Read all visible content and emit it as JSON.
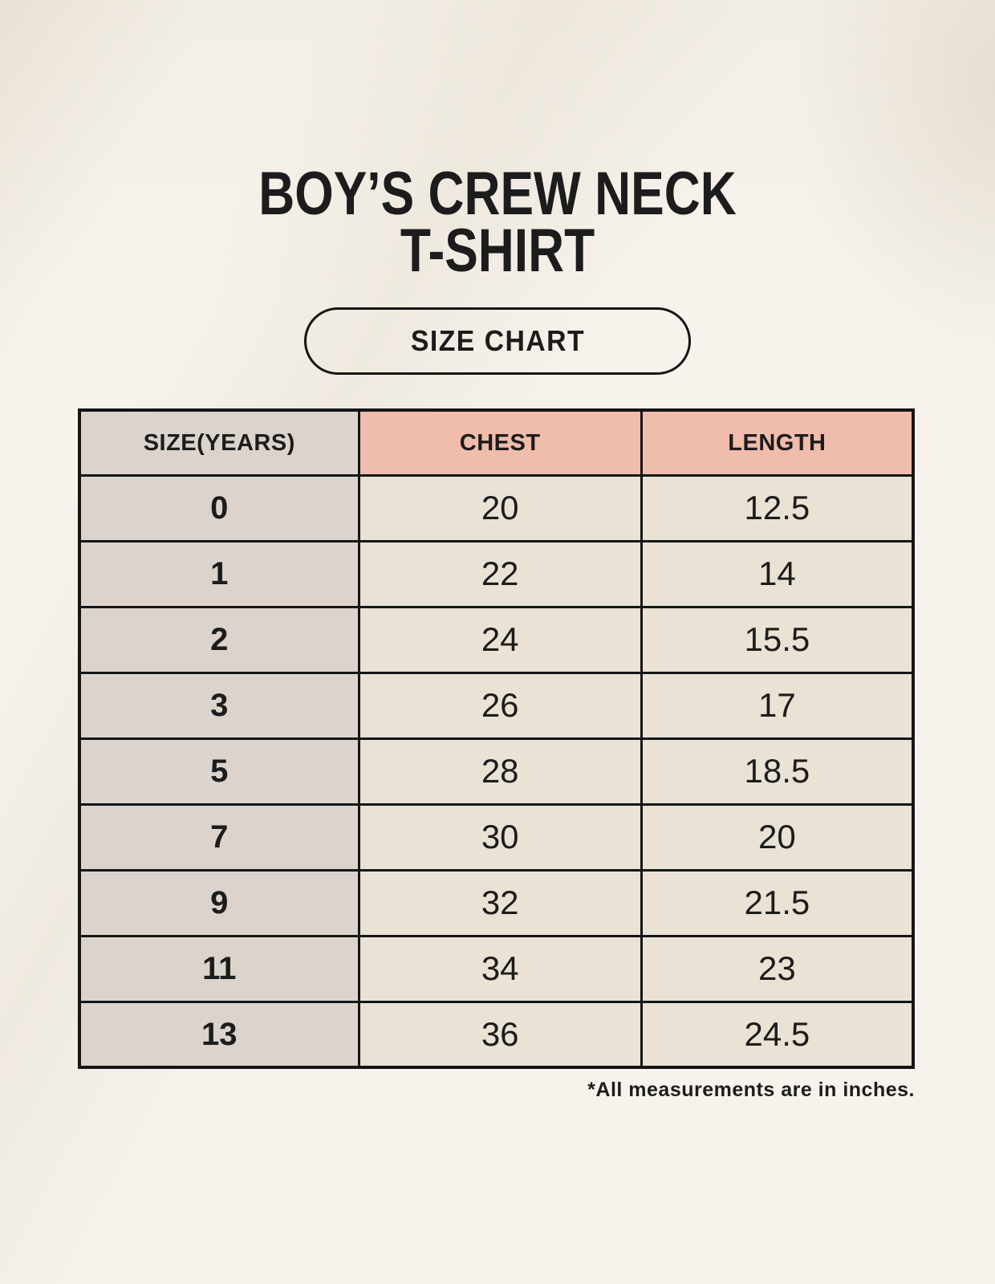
{
  "title": {
    "line1": "BOY’S CREW NECK",
    "line2": "T-SHIRT"
  },
  "size_chart_badge": {
    "label": "SIZE CHART"
  },
  "table": {
    "headers": [
      "SIZE(YEARS)",
      "CHEST",
      "LENGTH"
    ],
    "rows": [
      {
        "size": "0",
        "chest": "20",
        "length": "12.5"
      },
      {
        "size": "1",
        "chest": "22",
        "length": "14"
      },
      {
        "size": "2",
        "chest": "24",
        "length": "15.5"
      },
      {
        "size": "3",
        "chest": "26",
        "length": "17"
      },
      {
        "size": "5",
        "chest": "28",
        "length": "18.5"
      },
      {
        "size": "7",
        "chest": "30",
        "length": "20"
      },
      {
        "size": "9",
        "chest": "32",
        "length": "21.5"
      },
      {
        "size": "11",
        "chest": "34",
        "length": "23"
      },
      {
        "size": "13",
        "chest": "36",
        "length": "24.5"
      }
    ]
  },
  "footnote": "*All measurements are in inches.",
  "colors": {
    "background": "#f7f3ec",
    "header_pink": "#f0bcac",
    "column_gray": "#dbd3cc",
    "cell_cream": "#e9e2d5",
    "border": "#151515",
    "text": "#1c1c1c"
  }
}
